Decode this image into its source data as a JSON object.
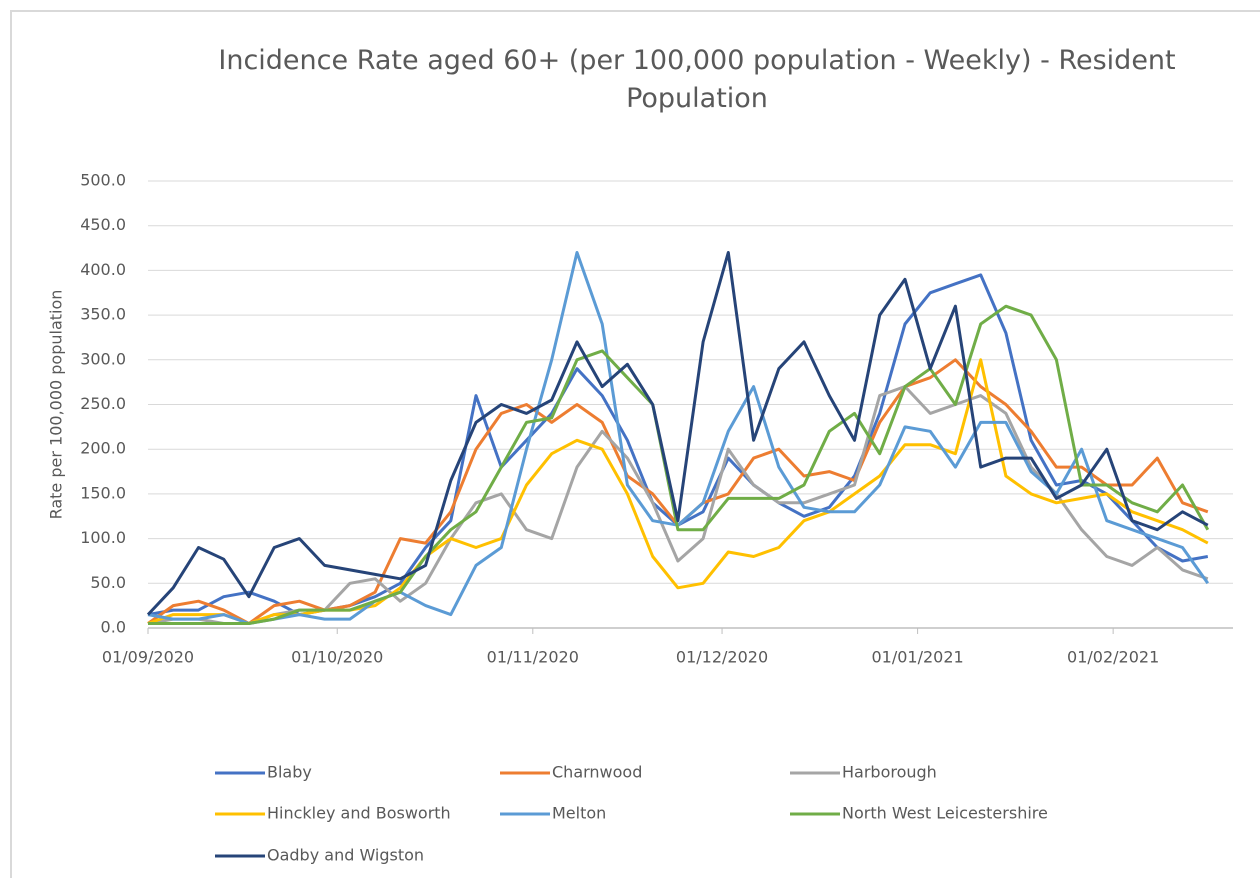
{
  "chart_data": {
    "type": "line",
    "title": "Incidence Rate aged 60+ (per 100,000 population - Weekly) - Resident Population",
    "y_label": "Rate per 100,000 population",
    "x": [
      "01/09/2020",
      "05/09/2020",
      "09/09/2020",
      "13/09/2020",
      "17/09/2020",
      "21/09/2020",
      "25/09/2020",
      "29/09/2020",
      "03/10/2020",
      "07/10/2020",
      "11/10/2020",
      "15/10/2020",
      "19/10/2020",
      "23/10/2020",
      "27/10/2020",
      "31/10/2020",
      "04/11/2020",
      "08/11/2020",
      "12/11/2020",
      "16/11/2020",
      "20/11/2020",
      "24/11/2020",
      "28/11/2020",
      "02/12/2020",
      "06/12/2020",
      "10/12/2020",
      "14/12/2020",
      "18/12/2020",
      "22/12/2020",
      "26/12/2020",
      "30/12/2020",
      "03/01/2021",
      "07/01/2021",
      "11/01/2021",
      "15/01/2021",
      "19/01/2021",
      "23/01/2021",
      "27/01/2021",
      "31/01/2021",
      "04/02/2021",
      "08/02/2021",
      "12/02/2021",
      "16/02/2021"
    ],
    "xlim": [
      "01/09/2020",
      "20/02/2021"
    ],
    "xticks": [
      "01/09/2020",
      "01/10/2020",
      "01/11/2020",
      "01/12/2020",
      "01/01/2021",
      "01/02/2021"
    ],
    "ylim": [
      0,
      500
    ],
    "yticks": [
      {
        "value": 0,
        "label": "0.0"
      },
      {
        "value": 50,
        "label": "50.0"
      },
      {
        "value": 100,
        "label": "100.0"
      },
      {
        "value": 150,
        "label": "150.0"
      },
      {
        "value": 200,
        "label": "200.0"
      },
      {
        "value": 250,
        "label": "250.0"
      },
      {
        "value": 300,
        "label": "300.0"
      },
      {
        "value": 350,
        "label": "350.0"
      },
      {
        "value": 400,
        "label": "400.0"
      },
      {
        "value": 450,
        "label": "450.0"
      },
      {
        "value": 500,
        "label": "500.0"
      }
    ],
    "grid": true,
    "legend": "bottom",
    "series": [
      {
        "name": "Blaby",
        "color": "#4472c4",
        "values": [
          15,
          20,
          20,
          35,
          40,
          30,
          15,
          20,
          25,
          35,
          50,
          90,
          120,
          260,
          180,
          210,
          240,
          290,
          260,
          210,
          140,
          115,
          130,
          190,
          160,
          140,
          125,
          135,
          170,
          240,
          340,
          375,
          385,
          395,
          330,
          210,
          160,
          165,
          150,
          120,
          90,
          75,
          80
        ]
      },
      {
        "name": "Charnwood",
        "color": "#ed7d31",
        "values": [
          5,
          25,
          30,
          20,
          5,
          25,
          30,
          20,
          25,
          40,
          100,
          95,
          130,
          200,
          240,
          250,
          230,
          250,
          230,
          170,
          150,
          115,
          140,
          150,
          190,
          200,
          170,
          175,
          165,
          230,
          270,
          280,
          300,
          270,
          250,
          220,
          180,
          180,
          160,
          160,
          190,
          140,
          130
        ]
      },
      {
        "name": "Harborough",
        "color": "#a5a5a5",
        "values": [
          5,
          10,
          10,
          5,
          5,
          15,
          20,
          20,
          50,
          55,
          30,
          50,
          100,
          140,
          150,
          110,
          100,
          180,
          220,
          190,
          140,
          75,
          100,
          200,
          160,
          140,
          140,
          150,
          160,
          260,
          270,
          240,
          250,
          260,
          240,
          180,
          150,
          110,
          80,
          70,
          90,
          65,
          55
        ]
      },
      {
        "name": "Hinckley and Bosworth",
        "color": "#ffc000",
        "values": [
          5,
          15,
          15,
          15,
          5,
          15,
          15,
          20,
          20,
          25,
          45,
          80,
          100,
          90,
          100,
          160,
          195,
          210,
          200,
          150,
          80,
          45,
          50,
          85,
          80,
          90,
          120,
          130,
          150,
          170,
          205,
          205,
          195,
          300,
          170,
          150,
          140,
          145,
          150,
          130,
          120,
          110,
          95
        ]
      },
      {
        "name": "Melton",
        "color": "#5b9bd5",
        "values": [
          15,
          10,
          10,
          15,
          5,
          10,
          15,
          10,
          10,
          30,
          40,
          25,
          15,
          70,
          90,
          200,
          300,
          420,
          340,
          160,
          120,
          115,
          140,
          220,
          270,
          180,
          135,
          130,
          130,
          160,
          225,
          220,
          180,
          230,
          230,
          175,
          150,
          200,
          120,
          110,
          100,
          90,
          50
        ]
      },
      {
        "name": "North West Leicestershire",
        "color": "#70ad47",
        "values": [
          5,
          5,
          5,
          5,
          5,
          10,
          20,
          20,
          20,
          30,
          40,
          80,
          110,
          130,
          180,
          230,
          235,
          300,
          310,
          280,
          250,
          110,
          110,
          145,
          145,
          145,
          160,
          220,
          240,
          195,
          270,
          290,
          250,
          340,
          360,
          350,
          300,
          160,
          160,
          140,
          130,
          160,
          110
        ]
      },
      {
        "name": "Oadby and Wigston",
        "color": "#264478",
        "values": [
          15,
          45,
          90,
          77,
          35,
          90,
          100,
          70,
          65,
          60,
          55,
          70,
          165,
          230,
          250,
          240,
          255,
          320,
          270,
          295,
          250,
          120,
          320,
          420,
          210,
          290,
          320,
          260,
          210,
          350,
          390,
          290,
          360,
          180,
          190,
          190,
          145,
          160,
          200,
          120,
          110,
          130,
          115
        ]
      }
    ]
  }
}
